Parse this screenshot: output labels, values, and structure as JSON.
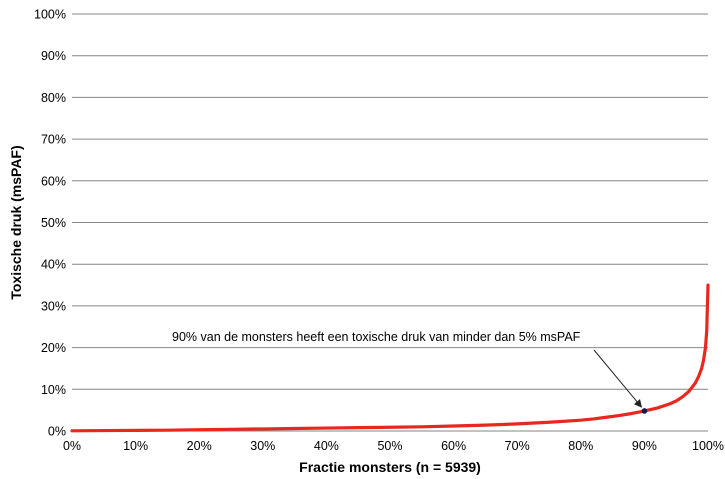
{
  "chart_data": {
    "type": "line",
    "xlabel": "Fractie monsters (n = 5939)",
    "ylabel": "Toxische druk (msPAF)",
    "xlim": [
      0,
      100
    ],
    "ylim": [
      0,
      100
    ],
    "x_ticks": [
      "0%",
      "10%",
      "20%",
      "30%",
      "40%",
      "50%",
      "60%",
      "70%",
      "80%",
      "90%",
      "100%"
    ],
    "y_ticks": [
      "0%",
      "10%",
      "20%",
      "30%",
      "40%",
      "50%",
      "60%",
      "70%",
      "80%",
      "90%",
      "100%"
    ],
    "grid": "horizontal",
    "legend": "none",
    "series": [
      {
        "color": "#e8281e",
        "x": [
          0,
          5,
          10,
          15,
          20,
          25,
          30,
          35,
          40,
          45,
          50,
          55,
          60,
          65,
          70,
          75,
          80,
          82,
          84,
          86,
          88,
          90,
          92,
          94,
          95,
          96,
          97,
          98,
          98.5,
          99,
          99.3,
          99.6,
          99.8,
          100
        ],
        "y": [
          0.05,
          0.1,
          0.15,
          0.2,
          0.3,
          0.4,
          0.5,
          0.6,
          0.7,
          0.8,
          0.9,
          1.0,
          1.2,
          1.4,
          1.7,
          2.1,
          2.6,
          2.9,
          3.3,
          3.7,
          4.2,
          4.8,
          5.5,
          6.5,
          7.2,
          8.2,
          9.5,
          11.5,
          13,
          15,
          17,
          20,
          24,
          35
        ]
      }
    ],
    "highlight_point": {
      "x": 90,
      "y": 4.8,
      "color": "#1a1a4a"
    },
    "annotation": {
      "text": "90% van de monsters heeft een toxische druk van minder dan 5% msPAF",
      "points_to": {
        "x": 90,
        "y": 4.8
      }
    }
  }
}
